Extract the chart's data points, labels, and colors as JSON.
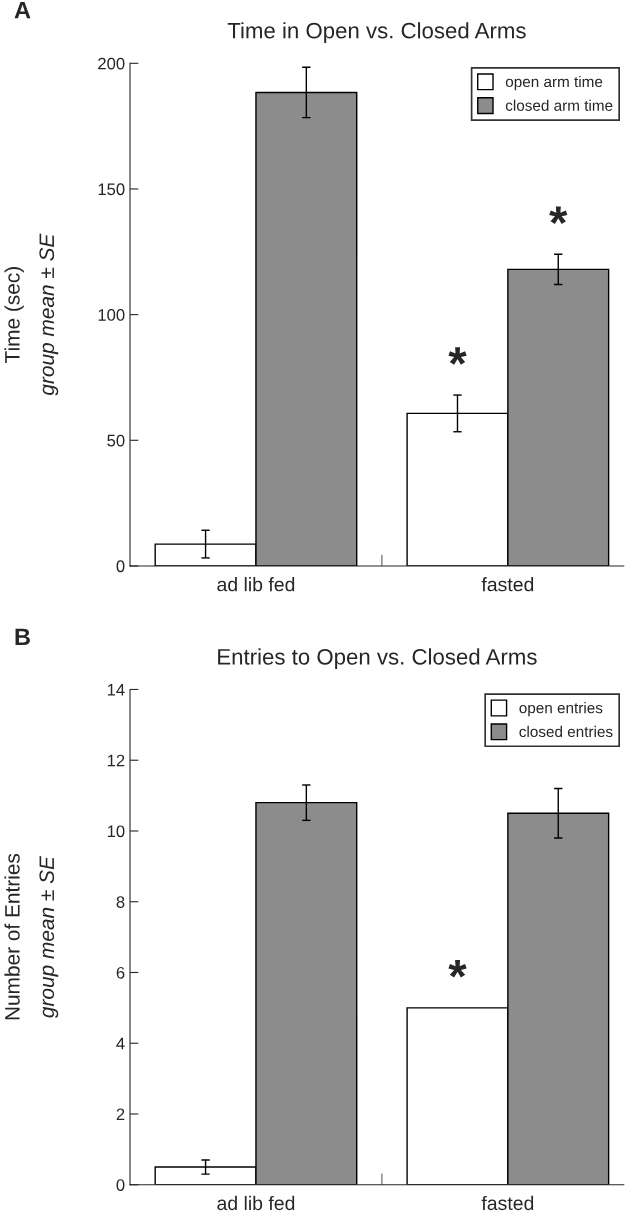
{
  "chart_data": [
    {
      "type": "bar",
      "title": "Time in Open vs. Closed Arms",
      "ylabel": "Time (sec)\ngroup mean ± SE",
      "annotations": [
        "A"
      ],
      "categories": [
        "ad lib fed",
        "fasted"
      ],
      "series": [
        {
          "name": "open arm time",
          "color": "#ffffff",
          "values": [
            8.7,
            60.7
          ],
          "errors": [
            5.5,
            7.3
          ],
          "value_labels": [
            null,
            "*"
          ]
        },
        {
          "name": "closed arm time",
          "color": "#8c8c8c",
          "values": [
            188.4,
            118
          ],
          "errors": [
            10,
            6
          ],
          "value_labels": [
            null,
            "*"
          ]
        }
      ],
      "ylim": [
        0,
        200
      ],
      "yticks": [
        0,
        50,
        100,
        150,
        200
      ],
      "legend": "top right",
      "grid": false
    },
    {
      "type": "bar",
      "title": "Entries to Open vs. Closed Arms",
      "ylabel": "Number of Entries\ngroup mean ± SE",
      "annotations": [
        "B"
      ],
      "categories": [
        "ad lib fed",
        "fasted"
      ],
      "series": [
        {
          "name": "open entries",
          "color": "#ffffff",
          "values": [
            0.5,
            5.0
          ],
          "errors": [
            0.2,
            null
          ],
          "value_labels": [
            null,
            "*"
          ]
        },
        {
          "name": "closed entries",
          "color": "#8c8c8c",
          "values": [
            10.8,
            10.5
          ],
          "errors": [
            0.5,
            0.7
          ],
          "value_labels": [
            null,
            null
          ]
        }
      ],
      "ylim": [
        0,
        14
      ],
      "yticks": [
        0,
        2,
        4,
        6,
        8,
        10,
        12,
        14
      ],
      "legend": "top right",
      "grid": false
    }
  ]
}
